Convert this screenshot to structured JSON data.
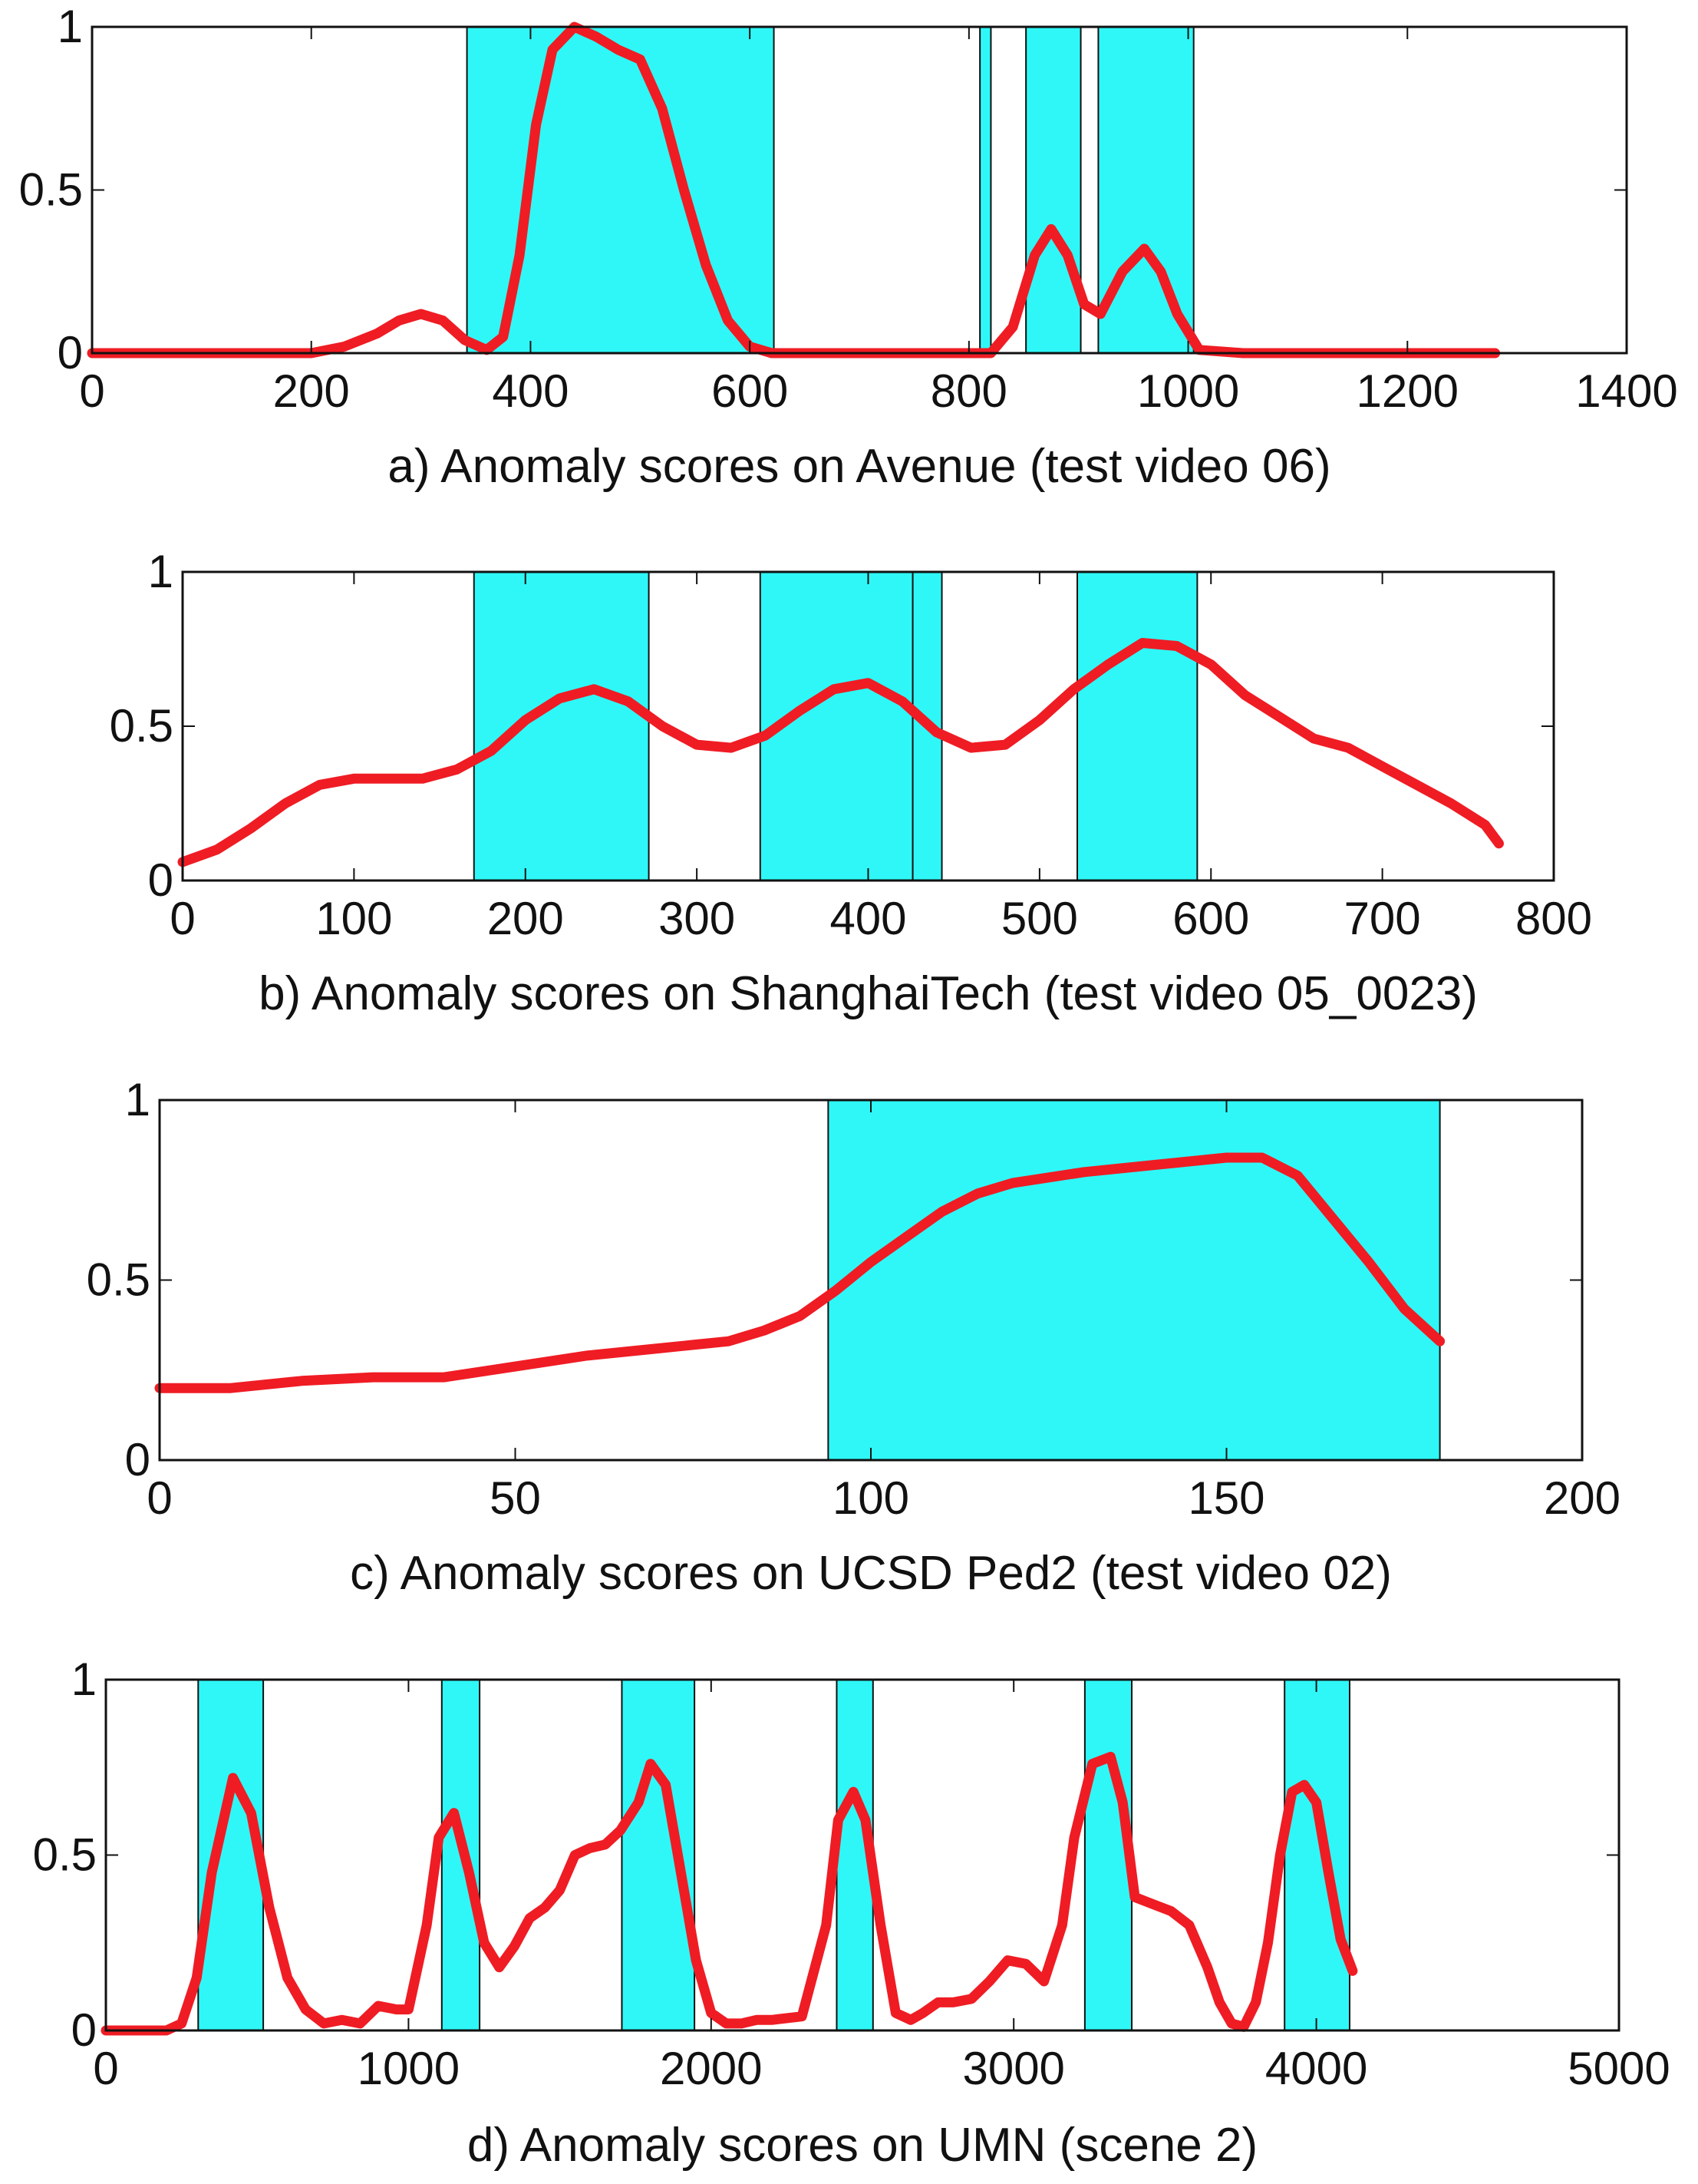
{
  "colors": {
    "score_line": "#ef1c24",
    "anomaly_region": "#2ff7f7",
    "axes": "#111111"
  },
  "chart_data": [
    {
      "type": "line",
      "title": "a) Anomaly scores on Avenue (test video 06)",
      "xlabel": "",
      "ylabel": "",
      "xlim": [
        0,
        1400
      ],
      "ylim": [
        0,
        1
      ],
      "xticks": [
        0,
        200,
        400,
        600,
        800,
        1000,
        1200,
        1400
      ],
      "yticks": [
        0,
        0.5,
        1
      ],
      "ytick_labels": [
        "0",
        "0.5",
        "1"
      ],
      "anomaly_regions": [
        [
          342,
          622
        ],
        [
          810,
          820
        ],
        [
          852,
          902
        ],
        [
          918,
          1005
        ]
      ],
      "series": [
        {
          "name": "Anomaly score",
          "x": [
            0,
            100,
            200,
            230,
            260,
            280,
            300,
            320,
            340,
            360,
            375,
            390,
            405,
            420,
            440,
            460,
            480,
            500,
            520,
            540,
            560,
            580,
            600,
            620,
            650,
            700,
            750,
            800,
            820,
            840,
            860,
            875,
            890,
            905,
            920,
            940,
            960,
            975,
            990,
            1010,
            1050,
            1100,
            1200,
            1280
          ],
          "y": [
            0,
            0,
            0,
            0.02,
            0.06,
            0.1,
            0.12,
            0.1,
            0.04,
            0.01,
            0.05,
            0.3,
            0.7,
            0.93,
            1.0,
            0.97,
            0.93,
            0.9,
            0.75,
            0.5,
            0.27,
            0.1,
            0.02,
            0.0,
            0,
            0,
            0,
            0,
            0.0,
            0.08,
            0.3,
            0.38,
            0.3,
            0.15,
            0.12,
            0.25,
            0.32,
            0.25,
            0.12,
            0.01,
            0,
            0,
            0,
            0
          ]
        }
      ]
    },
    {
      "type": "line",
      "title": "b) Anomaly scores on ShanghaiTech (test video 05_0023)",
      "xlabel": "",
      "ylabel": "",
      "xlim": [
        0,
        800
      ],
      "ylim": [
        0,
        1
      ],
      "xticks": [
        0,
        100,
        200,
        300,
        400,
        500,
        600,
        700,
        800
      ],
      "yticks": [
        0,
        0.5,
        1
      ],
      "ytick_labels": [
        "0",
        "0.5",
        "1"
      ],
      "anomaly_regions": [
        [
          170,
          272
        ],
        [
          337,
          426
        ],
        [
          426,
          443
        ],
        [
          522,
          592
        ]
      ],
      "series": [
        {
          "name": "Anomaly score",
          "x": [
            0,
            20,
            40,
            60,
            80,
            100,
            120,
            140,
            160,
            180,
            200,
            220,
            240,
            260,
            280,
            300,
            320,
            340,
            360,
            380,
            400,
            420,
            440,
            460,
            480,
            500,
            520,
            540,
            560,
            580,
            600,
            620,
            640,
            660,
            680,
            700,
            720,
            740,
            760,
            768
          ],
          "y": [
            0.06,
            0.1,
            0.17,
            0.25,
            0.31,
            0.33,
            0.33,
            0.33,
            0.36,
            0.42,
            0.52,
            0.59,
            0.62,
            0.58,
            0.5,
            0.44,
            0.43,
            0.47,
            0.55,
            0.62,
            0.64,
            0.58,
            0.48,
            0.43,
            0.44,
            0.52,
            0.62,
            0.7,
            0.77,
            0.76,
            0.7,
            0.6,
            0.53,
            0.46,
            0.43,
            0.37,
            0.31,
            0.25,
            0.18,
            0.12
          ]
        }
      ]
    },
    {
      "type": "line",
      "title": "c) Anomaly scores on UCSD Ped2 (test video 02)",
      "xlabel": "",
      "ylabel": "",
      "xlim": [
        0,
        200
      ],
      "ylim": [
        0,
        1
      ],
      "xticks": [
        0,
        50,
        100,
        150,
        200
      ],
      "yticks": [
        0,
        0.5,
        1
      ],
      "ytick_labels": [
        "0",
        "0.5",
        "1"
      ],
      "anomaly_regions": [
        [
          94,
          180
        ]
      ],
      "series": [
        {
          "name": "Anomaly score",
          "x": [
            0,
            10,
            20,
            30,
            40,
            50,
            60,
            70,
            75,
            80,
            85,
            90,
            95,
            100,
            105,
            110,
            115,
            120,
            130,
            140,
            150,
            155,
            160,
            165,
            170,
            175,
            180
          ],
          "y": [
            0.2,
            0.2,
            0.22,
            0.23,
            0.23,
            0.26,
            0.29,
            0.31,
            0.32,
            0.33,
            0.36,
            0.4,
            0.47,
            0.55,
            0.62,
            0.69,
            0.74,
            0.77,
            0.8,
            0.82,
            0.84,
            0.84,
            0.79,
            0.67,
            0.55,
            0.42,
            0.33
          ]
        }
      ]
    },
    {
      "type": "line",
      "title": "d) Anomaly scores on UMN (scene 2)",
      "xlabel": "",
      "ylabel": "",
      "xlim": [
        0,
        5000
      ],
      "ylim": [
        0,
        1
      ],
      "xticks": [
        0,
        1000,
        2000,
        3000,
        4000,
        5000
      ],
      "yticks": [
        0,
        0.5,
        1
      ],
      "ytick_labels": [
        "0",
        "0.5",
        "1"
      ],
      "anomaly_regions": [
        [
          305,
          520
        ],
        [
          1110,
          1235
        ],
        [
          1705,
          1945
        ],
        [
          2415,
          2535
        ],
        [
          3235,
          3390
        ],
        [
          3895,
          4110
        ]
      ],
      "series": [
        {
          "name": "Anomaly score",
          "x": [
            0,
            100,
            200,
            250,
            300,
            350,
            420,
            480,
            540,
            600,
            660,
            720,
            780,
            840,
            900,
            960,
            1000,
            1060,
            1100,
            1150,
            1200,
            1250,
            1300,
            1350,
            1400,
            1450,
            1500,
            1550,
            1600,
            1650,
            1700,
            1760,
            1800,
            1850,
            1900,
            1950,
            2000,
            2050,
            2100,
            2150,
            2200,
            2300,
            2380,
            2420,
            2470,
            2510,
            2560,
            2610,
            2660,
            2700,
            2750,
            2800,
            2860,
            2920,
            2980,
            3040,
            3100,
            3160,
            3200,
            3260,
            3320,
            3360,
            3400,
            3460,
            3520,
            3580,
            3640,
            3680,
            3720,
            3760,
            3800,
            3840,
            3880,
            3920,
            3960,
            4000,
            4040,
            4080,
            4120
          ],
          "y": [
            0,
            0,
            0,
            0.02,
            0.15,
            0.45,
            0.72,
            0.62,
            0.35,
            0.15,
            0.06,
            0.02,
            0.03,
            0.02,
            0.07,
            0.06,
            0.06,
            0.3,
            0.55,
            0.62,
            0.45,
            0.25,
            0.18,
            0.24,
            0.32,
            0.35,
            0.4,
            0.5,
            0.52,
            0.53,
            0.57,
            0.65,
            0.76,
            0.7,
            0.45,
            0.2,
            0.05,
            0.02,
            0.02,
            0.03,
            0.03,
            0.04,
            0.3,
            0.6,
            0.68,
            0.6,
            0.3,
            0.05,
            0.03,
            0.05,
            0.08,
            0.08,
            0.09,
            0.14,
            0.2,
            0.19,
            0.14,
            0.3,
            0.55,
            0.76,
            0.78,
            0.65,
            0.38,
            0.36,
            0.34,
            0.3,
            0.18,
            0.08,
            0.02,
            0.01,
            0.08,
            0.25,
            0.5,
            0.68,
            0.7,
            0.65,
            0.45,
            0.26,
            0.17
          ]
        }
      ]
    }
  ]
}
